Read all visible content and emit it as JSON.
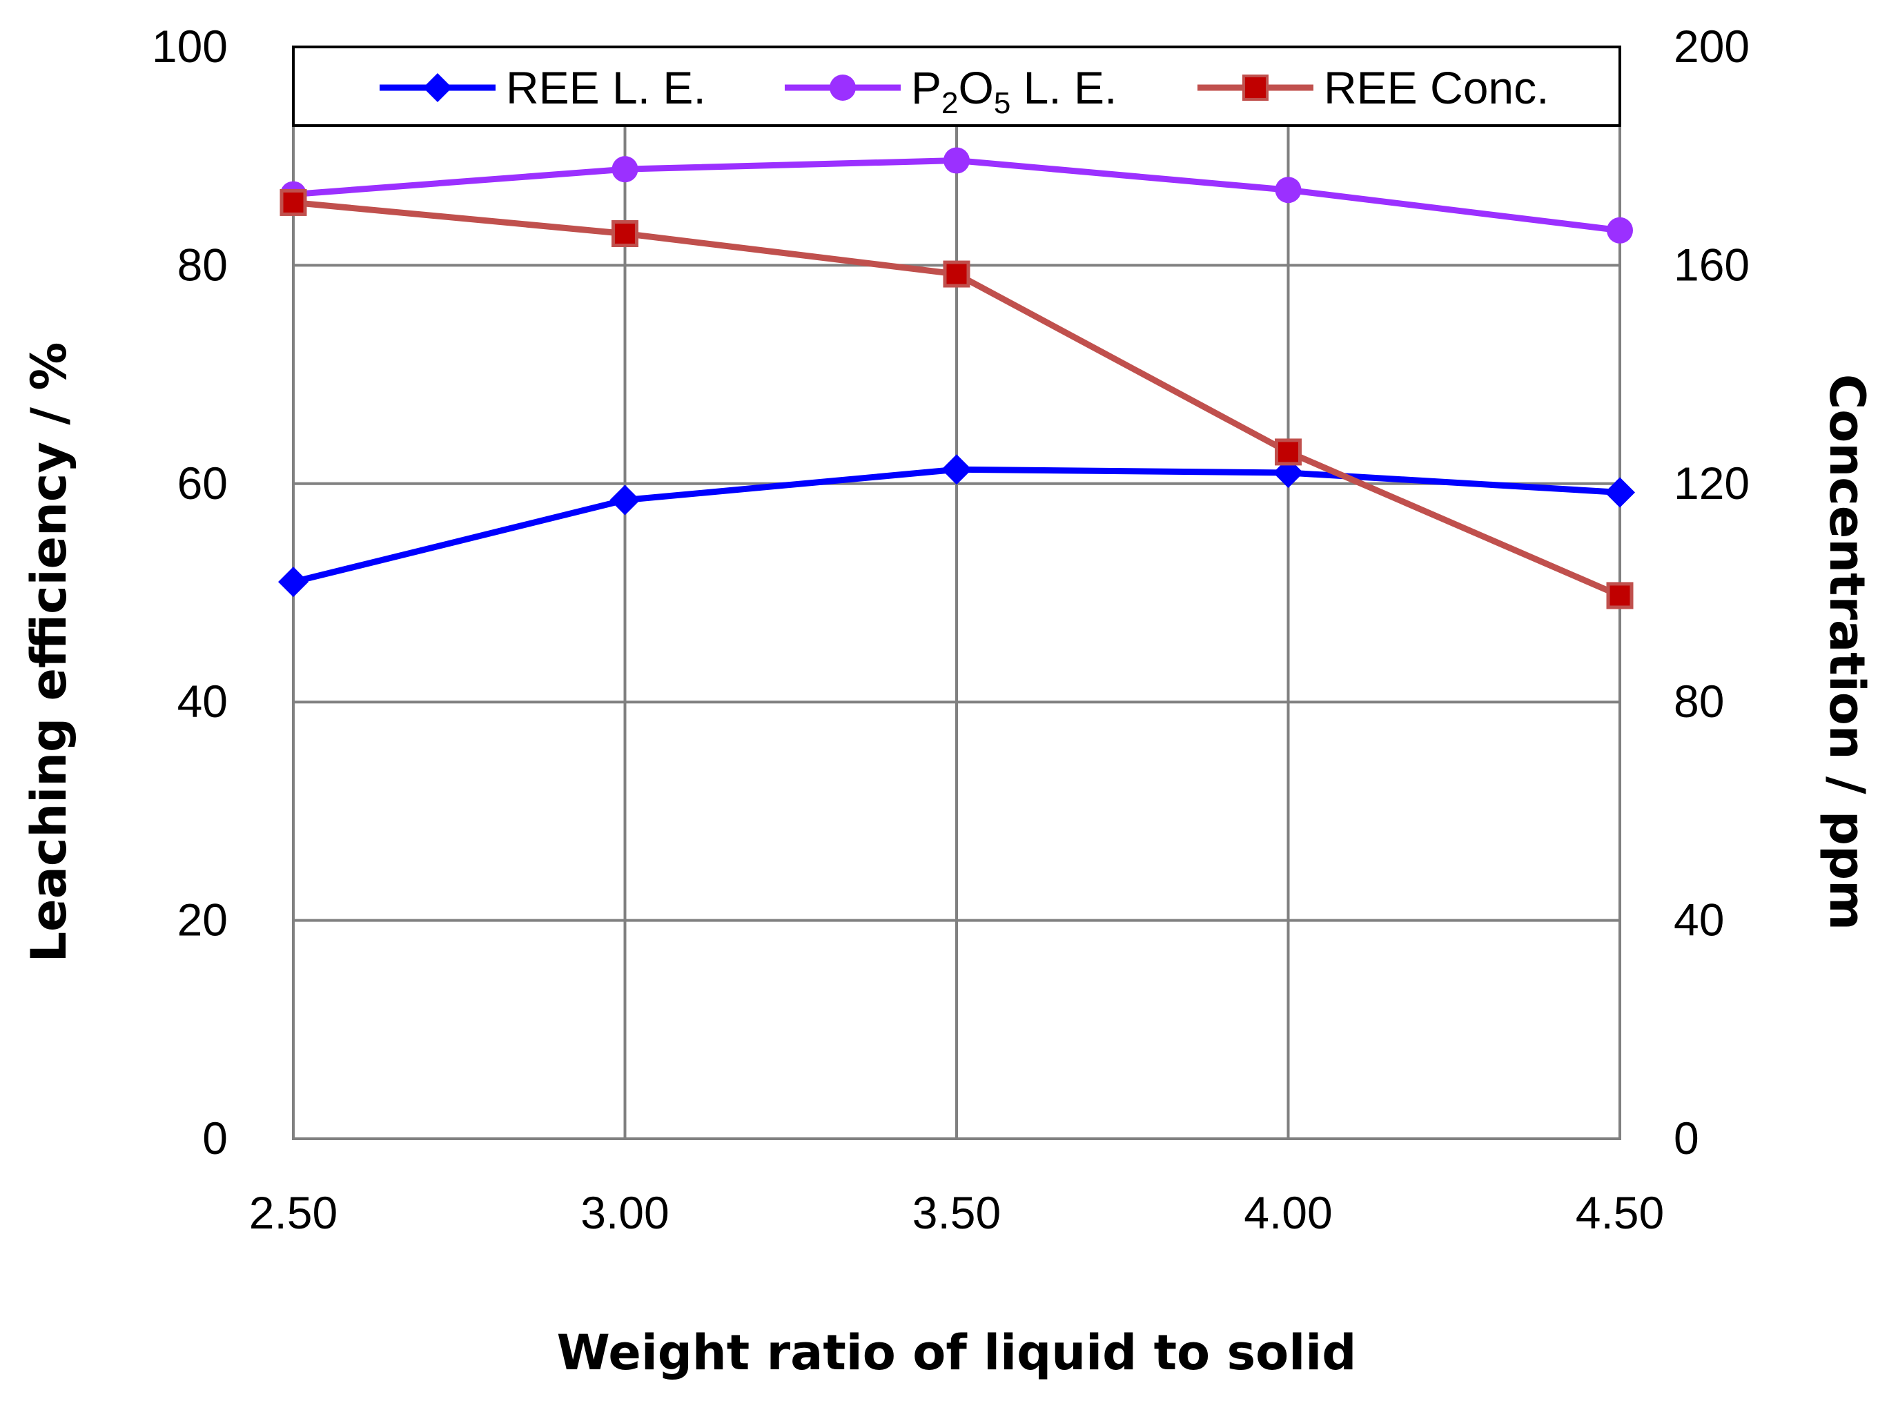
{
  "chart_data": {
    "type": "line",
    "title": "",
    "xlabel": "Weight ratio of liquid to solid",
    "ylabel_left": "Leaching efficiency  / %",
    "ylabel_right": "Concentration / ppm",
    "x": [
      2.5,
      3.0,
      3.5,
      4.0,
      4.5
    ],
    "x_tick_labels": [
      "2.50",
      "3.00",
      "3.50",
      "4.00",
      "4.50"
    ],
    "ylim_left": [
      0,
      100
    ],
    "y_left_ticks": [
      "0",
      "20",
      "40",
      "60",
      "80",
      "100"
    ],
    "ylim_right": [
      0,
      200
    ],
    "y_right_ticks": [
      "0",
      "40",
      "80",
      "120",
      "160",
      "200"
    ],
    "grid": true,
    "legend_position": "top",
    "series": [
      {
        "name": "REE L. E.",
        "legend_label": {
          "main": "REE L. E."
        },
        "axis": "left",
        "color": "#0000FF",
        "marker": "diamond",
        "values": [
          51.0,
          58.5,
          61.3,
          61.0,
          59.2
        ]
      },
      {
        "name": "P2O5 L. E.",
        "legend_label": {
          "p": "P",
          "sub1": "2",
          "o": "O",
          "sub2": "5",
          "rest": " L. E."
        },
        "axis": "left",
        "color": "#9B30FF",
        "marker": "circle",
        "values": [
          86.5,
          88.8,
          89.6,
          86.9,
          83.2
        ]
      },
      {
        "name": "REE Conc.",
        "legend_label": {
          "main": "REE Conc."
        },
        "axis": "right",
        "color": "#C0504D",
        "marker_fill": "#C00000",
        "marker": "square",
        "values": [
          171.5,
          165.8,
          158.4,
          125.8,
          99.5
        ]
      }
    ]
  }
}
